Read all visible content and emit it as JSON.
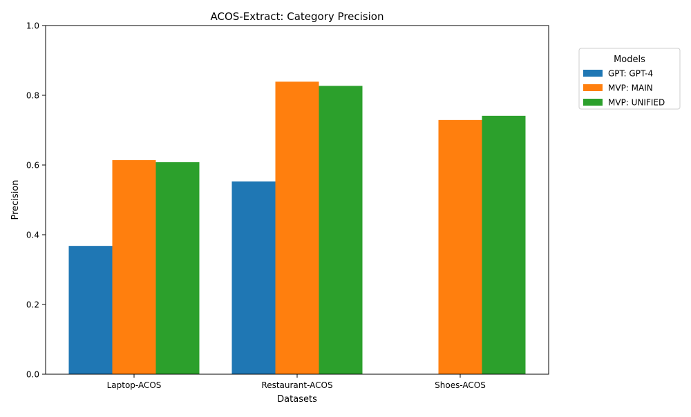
{
  "chart_data": {
    "type": "bar",
    "title": "ACOS-Extract: Category Precision",
    "xlabel": "Datasets",
    "ylabel": "Precision",
    "categories": [
      "Laptop-ACOS",
      "Restaurant-ACOS",
      "Shoes-ACOS"
    ],
    "ylim": [
      0,
      1.0
    ],
    "yticks": [
      0.0,
      0.2,
      0.4,
      0.6,
      0.8,
      1.0
    ],
    "ytick_labels": [
      "0.0",
      "0.2",
      "0.4",
      "0.6",
      "0.8",
      "1.0"
    ],
    "grid": false,
    "legend": {
      "title": "Models",
      "placement": "outside-top-right"
    },
    "series": [
      {
        "name": "GPT: GPT-4",
        "color": "#1f77b4",
        "values": [
          0.368,
          0.553,
          null
        ]
      },
      {
        "name": "MVP: MAIN",
        "color": "#ff7f0e",
        "values": [
          0.614,
          0.839,
          0.729
        ]
      },
      {
        "name": "MVP: UNIFIED",
        "color": "#2ca02c",
        "values": [
          0.608,
          0.827,
          0.741
        ]
      }
    ]
  }
}
